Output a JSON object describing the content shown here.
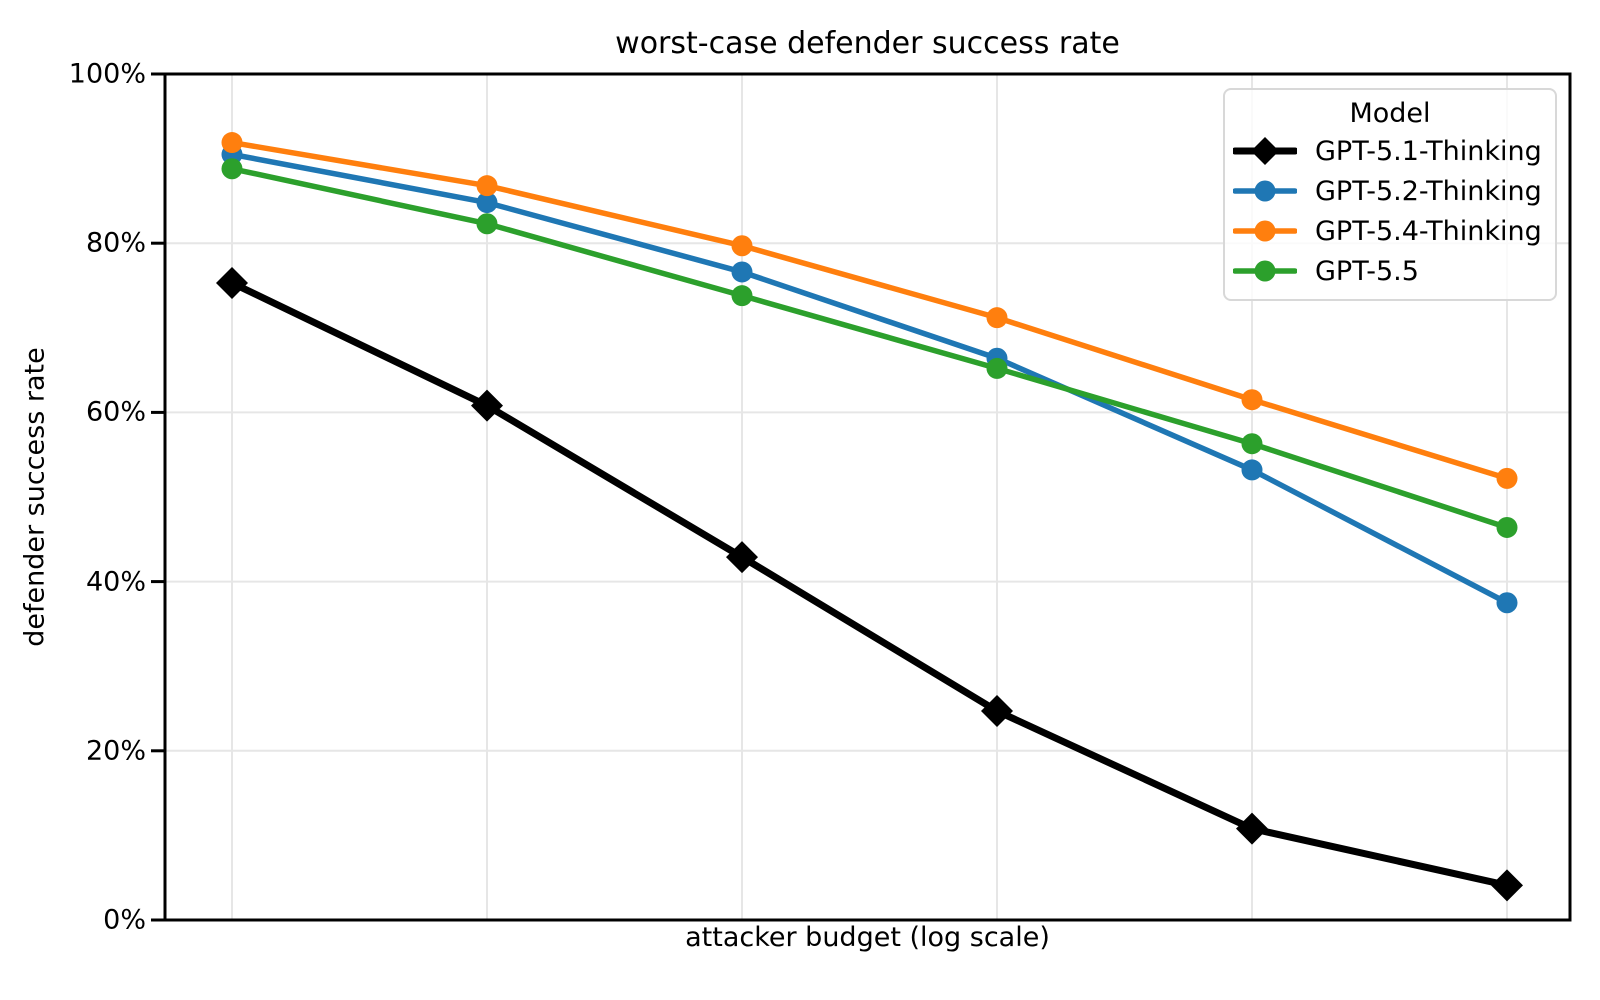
{
  "title": "worst-case defender success rate",
  "axes": {
    "x_label": "attacker budget (log scale)",
    "y_label": "defender success rate",
    "y_tick_labels": [
      "0%",
      "20%",
      "40%",
      "60%",
      "80%",
      "100%"
    ]
  },
  "legend": {
    "title": "Model"
  },
  "style": {
    "grid_color": "#e6e6e6",
    "spine_color": "#000000",
    "legend_border_color": "#d8d8d8"
  },
  "chart_data": {
    "type": "line",
    "title": "worst-case defender success rate",
    "xlabel": "attacker budget (log scale)",
    "ylabel": "defender success rate",
    "x_scale": "log",
    "x": [
      1,
      2,
      3,
      4,
      5,
      6
    ],
    "x_tick_labels_visible": false,
    "x_axis_note": "6 evenly spaced attacker budgets on a log axis; tick labels not shown",
    "ylim": [
      0,
      100
    ],
    "y_ticks_percent": [
      0,
      20,
      40,
      60,
      80,
      100
    ],
    "grid": true,
    "legend_title": "Model",
    "legend_position": "upper right",
    "series": [
      {
        "name": "GPT-5.1-Thinking",
        "color": "#000000",
        "marker": "diamond",
        "line_width": 7,
        "values_percent": [
          75.3,
          60.8,
          42.9,
          24.7,
          10.8,
          4.1
        ]
      },
      {
        "name": "GPT-5.2-Thinking",
        "color": "#1f77b4",
        "marker": "circle",
        "line_width": 5.5,
        "values_percent": [
          90.5,
          84.8,
          76.6,
          66.4,
          53.2,
          37.5
        ]
      },
      {
        "name": "GPT-5.4-Thinking",
        "color": "#ff7f0e",
        "marker": "circle",
        "line_width": 5.5,
        "values_percent": [
          91.9,
          86.8,
          79.7,
          71.2,
          61.5,
          52.2
        ]
      },
      {
        "name": "GPT-5.5",
        "color": "#2ca02c",
        "marker": "circle",
        "line_width": 5.5,
        "values_percent": [
          88.8,
          82.3,
          73.8,
          65.2,
          56.3,
          46.4
        ]
      }
    ]
  }
}
